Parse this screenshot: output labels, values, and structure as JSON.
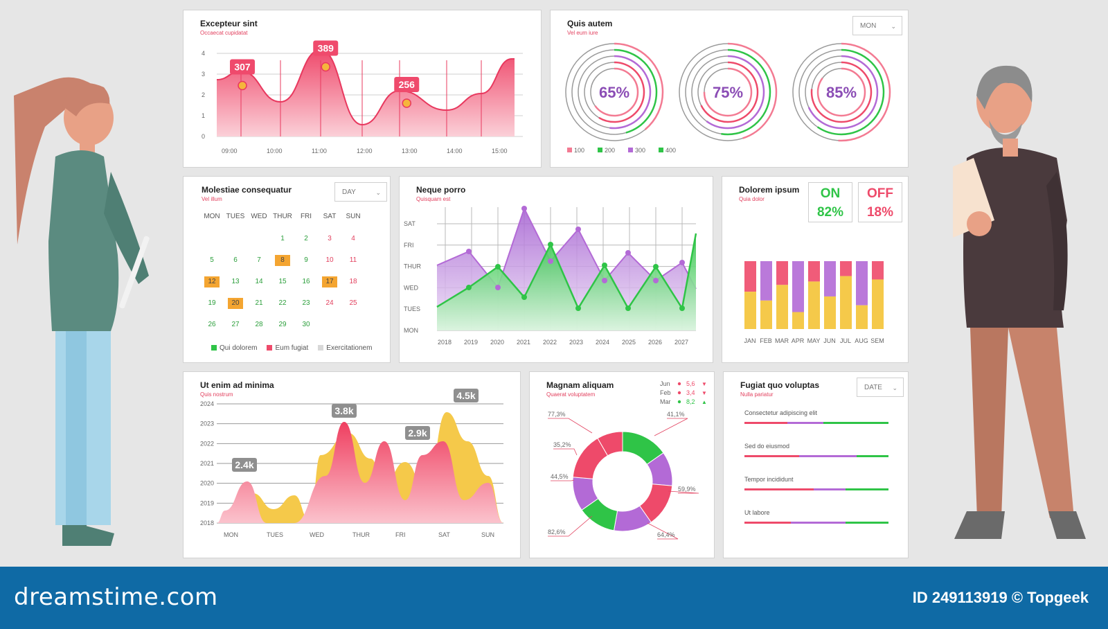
{
  "colors": {
    "red": "#ee4a6a",
    "pink": "#f37a92",
    "green": "#2fc447",
    "purple": "#b36ad6",
    "yellow": "#f5c94a",
    "orange": "#f4a531",
    "grey": "#d8d8d8"
  },
  "panel1": {
    "title": "Excepteur sint",
    "subtitle": "Occaecat cupidatat",
    "chart_data": {
      "type": "area",
      "x": [
        "09:00",
        "10:00",
        "11:00",
        "12:00",
        "13:00",
        "14:00",
        "15:00"
      ],
      "yticks": [
        "4",
        "3",
        "2",
        "1",
        "0"
      ],
      "ylim": [
        0,
        4
      ],
      "callouts": [
        {
          "label": "307",
          "x": 0.2,
          "y": 3.05
        },
        {
          "label": "389",
          "x": 2.05,
          "y": 3.95
        },
        {
          "label": "256",
          "x": 3.85,
          "y": 2.2
        }
      ]
    }
  },
  "panel2": {
    "title": "Quis autem",
    "subtitle": "Vel eum iure",
    "dropdown": "MON",
    "chart_data": {
      "type": "pie",
      "rings": [
        {
          "label": "65%",
          "value": 65
        },
        {
          "label": "75%",
          "value": 75
        },
        {
          "label": "85%",
          "value": 85
        }
      ],
      "legend": [
        "100",
        "200",
        "300",
        "400"
      ]
    }
  },
  "panel3": {
    "title": "Molestiae consequatur",
    "subtitle": "Vel illum",
    "dropdown": "DAY",
    "weekdays": [
      "MON",
      "TUES",
      "WED",
      "THUR",
      "FRI",
      "SAT",
      "SUN"
    ],
    "days": [
      "1",
      "2",
      "3",
      "4",
      "5",
      "6",
      "7",
      "8",
      "9",
      "10",
      "11",
      "12",
      "13",
      "14",
      "15",
      "16",
      "17",
      "18",
      "19",
      "20",
      "21",
      "22",
      "23",
      "24",
      "25",
      "26",
      "27",
      "28",
      "29",
      "30"
    ],
    "highlighted": [
      "8",
      "12",
      "17",
      "20"
    ],
    "legend": [
      "Qui dolorem",
      "Eum fugiat",
      "Exercitationem"
    ]
  },
  "panel4": {
    "title": "Neque porro",
    "subtitle": "Quisquam est",
    "chart_data": {
      "type": "area",
      "x": [
        "2018",
        "2019",
        "2020",
        "2021",
        "2022",
        "2023",
        "2024",
        "2025",
        "2026",
        "2027"
      ],
      "yticks": [
        "SAT",
        "FRI",
        "THUR",
        "WED",
        "TUES",
        "MON"
      ],
      "ylim": [
        0,
        5
      ]
    }
  },
  "panel5": {
    "title": "Dolorem ipsum",
    "subtitle": "Quia dolor",
    "on_label": "ON",
    "on_value": "82%",
    "off_label": "OFF",
    "off_value": "18%",
    "chart_data": {
      "type": "bar",
      "categories": [
        "JAN",
        "FEB",
        "MAR",
        "APR",
        "MAY",
        "JUN",
        "JUL",
        "AUG",
        "SEM"
      ],
      "series": [
        {
          "values": [
            55,
            42,
            65,
            25,
            70,
            48,
            78,
            35,
            73
          ]
        },
        {
          "values": [
            45,
            58,
            35,
            75,
            30,
            52,
            22,
            65,
            27
          ]
        }
      ]
    }
  },
  "panel6": {
    "title": "Ut enim ad minima",
    "subtitle": "Quis nostrum",
    "chart_data": {
      "type": "area",
      "x": [
        "MON",
        "TUES",
        "WED",
        "THUR",
        "FRI",
        "SAT",
        "SUN"
      ],
      "yticks": [
        "2024",
        "2023",
        "2022",
        "2021",
        "2020",
        "2019",
        "2018"
      ],
      "callouts": [
        {
          "label": "2.4k"
        },
        {
          "label": "3.8k"
        },
        {
          "label": "2.9k"
        },
        {
          "label": "4.5k"
        }
      ]
    }
  },
  "panel7": {
    "title": "Magnam aliquam",
    "subtitle": "Quaerat voluptatem",
    "table": [
      {
        "month": "Jun",
        "value": "5,6",
        "dir": "▼"
      },
      {
        "month": "Feb",
        "value": "3,4",
        "dir": "▼"
      },
      {
        "month": "Mar",
        "value": "8,2",
        "dir": "▲"
      }
    ],
    "chart_data": {
      "type": "pie",
      "labels": [
        "77,3%",
        "35,2%",
        "44,5%",
        "82,6%",
        "41,1%",
        "59,9%",
        "64,4%"
      ]
    }
  },
  "panel8": {
    "title": "Fugiat quo voluptas",
    "subtitle": "Nulla pariatur",
    "dropdown": "DATE",
    "items": [
      {
        "label": "Consectetur adipiscing elit",
        "parts": [
          30,
          25,
          45
        ]
      },
      {
        "label": "Sed do eiusmod",
        "parts": [
          38,
          40,
          22
        ]
      },
      {
        "label": "Tempor incididunt",
        "parts": [
          48,
          22,
          30
        ]
      },
      {
        "label": "Ut labore",
        "parts": [
          32,
          38,
          30
        ]
      }
    ]
  },
  "footer": {
    "brand": "dreamstime.com",
    "id": "ID 249113919 © Topgeek"
  }
}
